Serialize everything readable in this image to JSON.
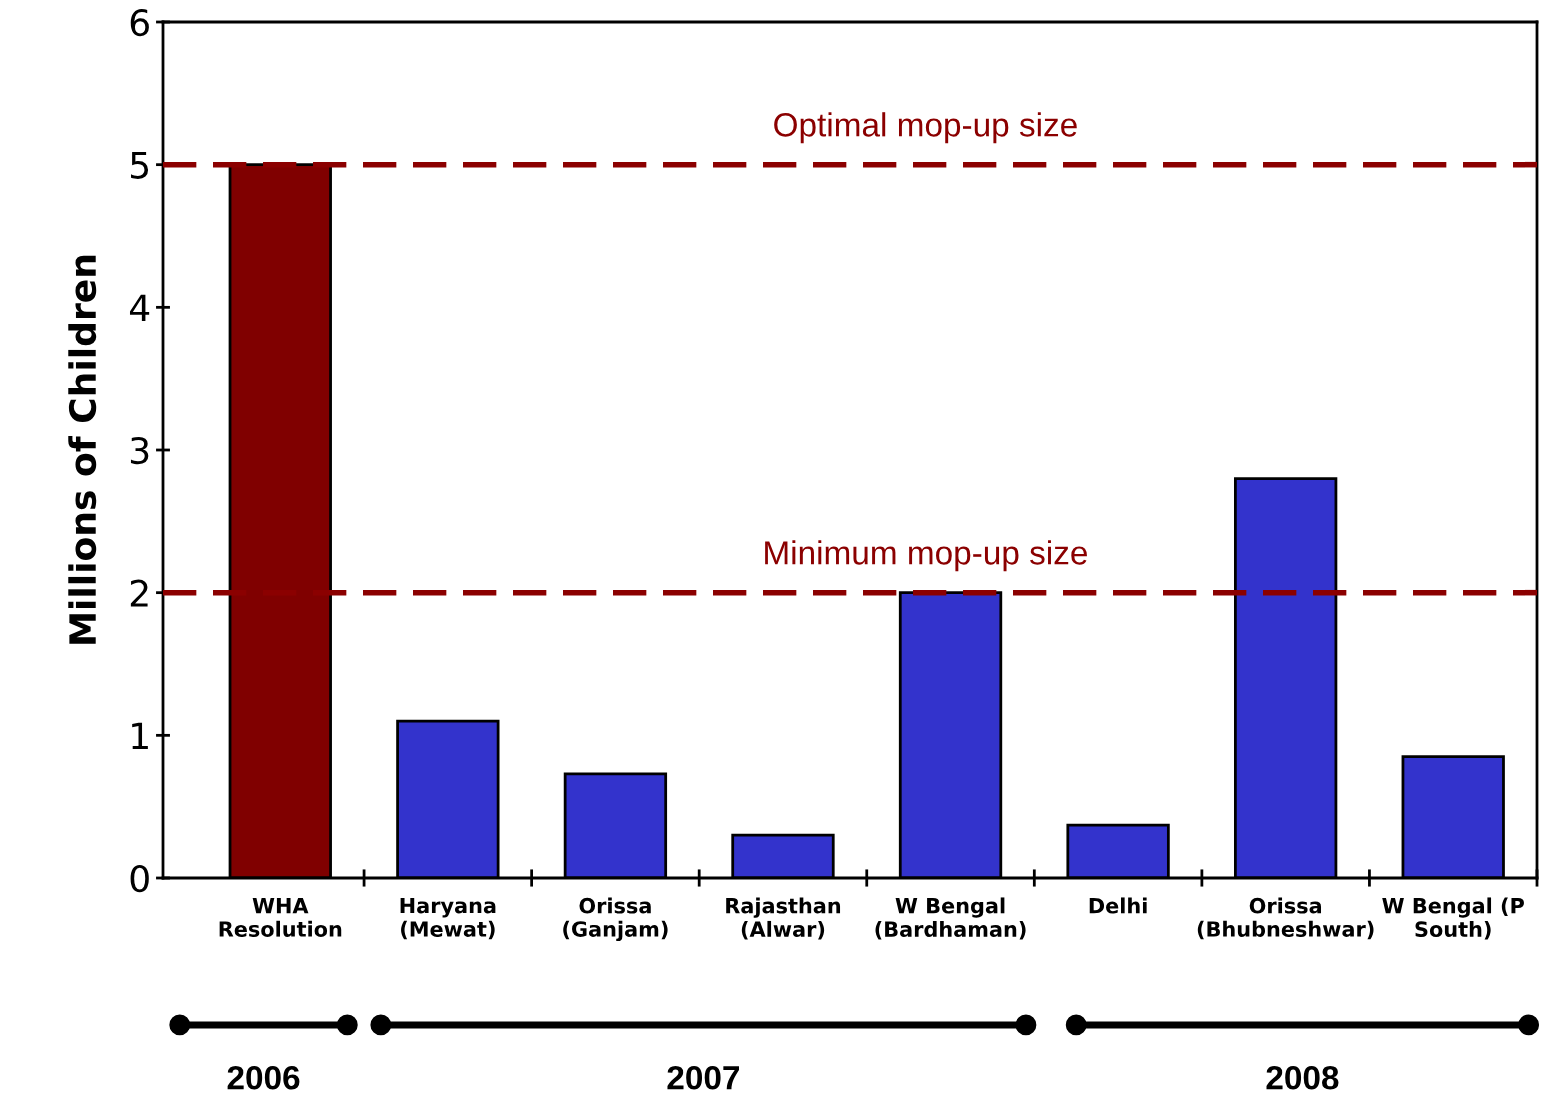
{
  "chart_data": {
    "type": "bar",
    "ylabel": "Millions of Children",
    "categories": [
      "WHA\nResolution",
      "Haryana\n(Mewat)",
      "Orissa\n(Ganjam)",
      "Rajasthan\n(Alwar)",
      "W Bengal\n(Bardhaman)",
      "Delhi",
      "Orissa\n(Bhubneshwar)",
      "W Bengal (P\nSouth)"
    ],
    "values": [
      5.0,
      1.1,
      0.73,
      0.3,
      2.0,
      0.37,
      2.8,
      0.85
    ],
    "colors": [
      "#800000",
      "#3333cc",
      "#3333cc",
      "#3333cc",
      "#3333cc",
      "#3333cc",
      "#3333cc",
      "#3333cc"
    ],
    "ylim": [
      0,
      6
    ],
    "yticks": [
      0,
      1,
      2,
      3,
      4,
      5,
      6
    ],
    "grid": false,
    "legend": false,
    "ref_lines": [
      {
        "axis": "y",
        "value": 5,
        "label": "Optimal mop-up size",
        "color": "#8b0000",
        "line_style": "dashed"
      },
      {
        "axis": "y",
        "value": 2,
        "label": "Minimum mop-up size",
        "color": "#8b0000",
        "line_style": "dashed"
      }
    ],
    "annotations": [
      "2006",
      "2007",
      "2008"
    ]
  }
}
